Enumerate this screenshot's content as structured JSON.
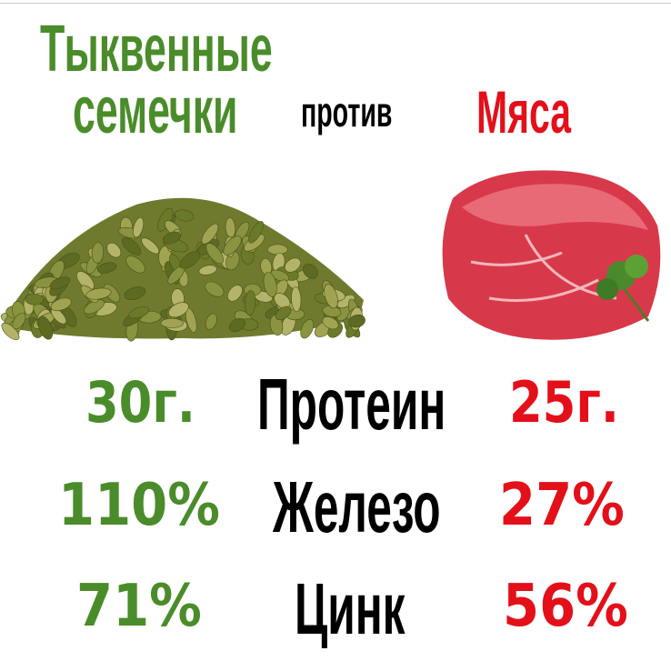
{
  "title": {
    "left_line1": "Тыквенные",
    "left_line2": "семечки",
    "versus": "против",
    "right": "Мяса"
  },
  "colors": {
    "left": "#4a8c2a",
    "right": "#e3101a",
    "label": "#000000"
  },
  "images": {
    "left": "pumpkin-seeds-pile",
    "right": "raw-beef-with-parsley"
  },
  "rows": [
    {
      "left": "30г.",
      "label": "Протеин",
      "right": "25г."
    },
    {
      "left": "110%",
      "label": "Железо",
      "right": "27%"
    },
    {
      "left": "71%",
      "label": "Цинк",
      "right": "56%"
    }
  ]
}
